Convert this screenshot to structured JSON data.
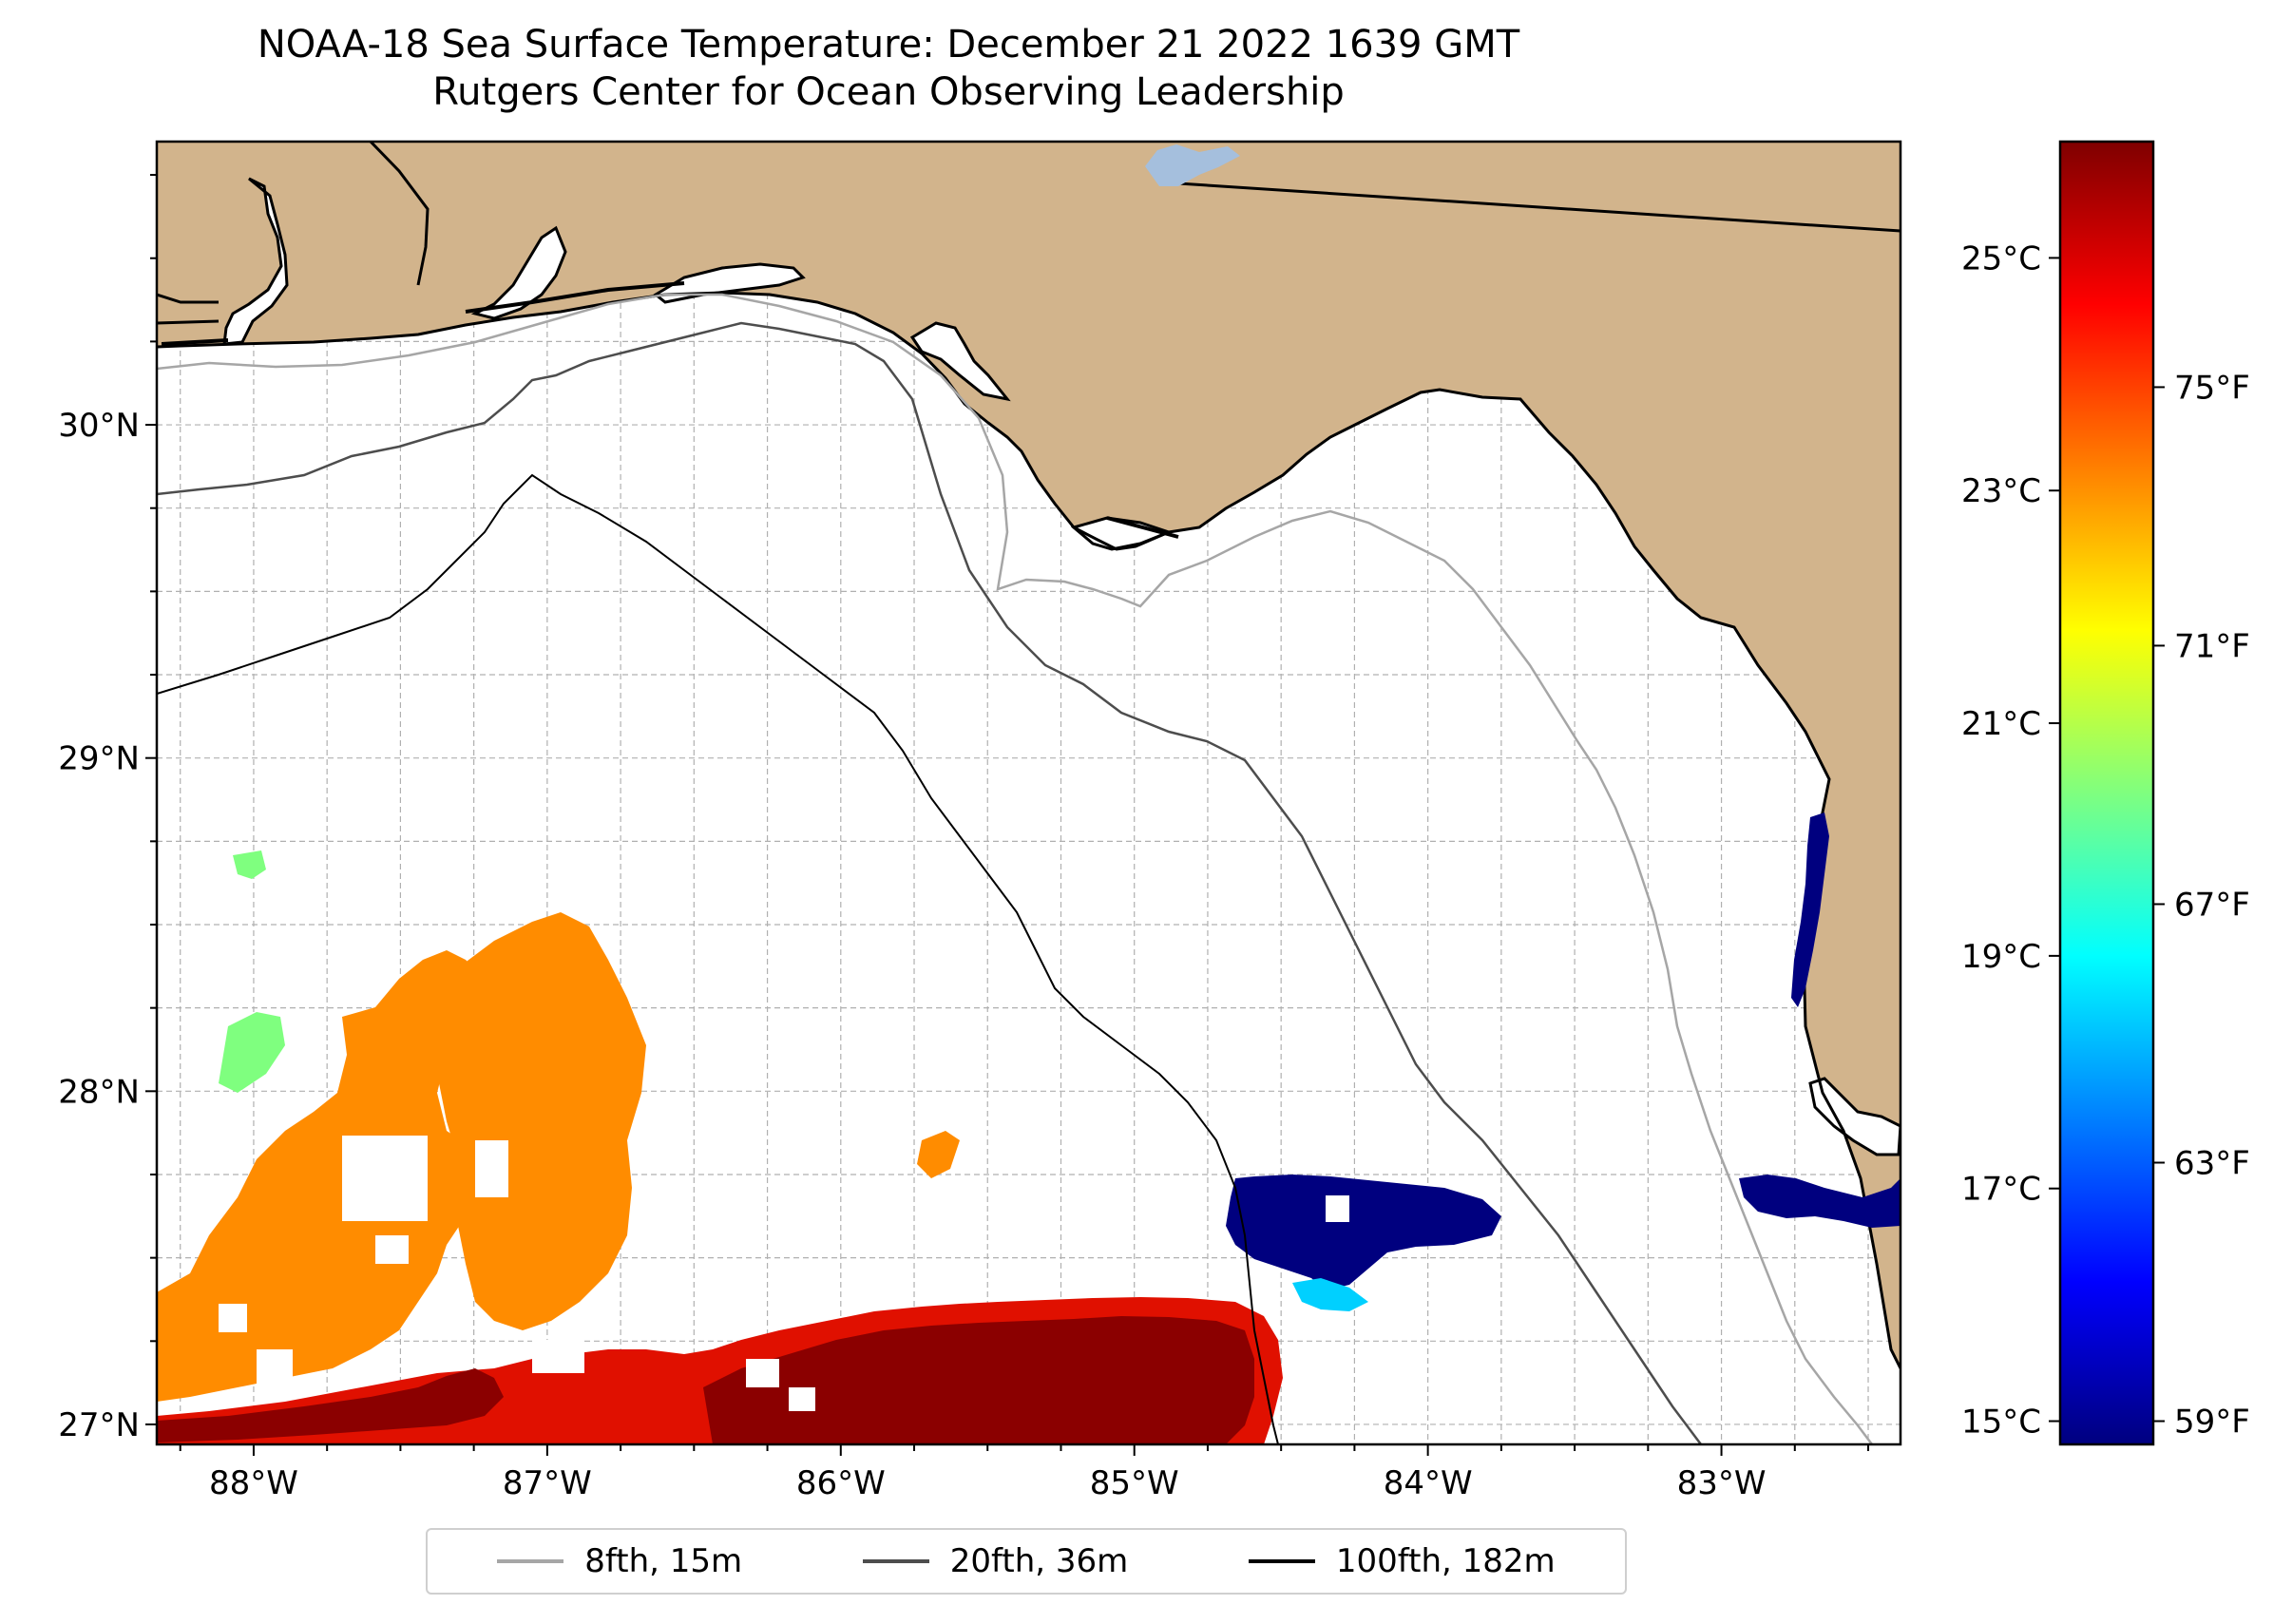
{
  "title": {
    "line1": "NOAA-18 Sea Surface Temperature: December 21 2022 1639 GMT",
    "line2": "Rutgers Center for Ocean Observing Leadership"
  },
  "map": {
    "extent": {
      "lon_min": -88.33,
      "lon_max": -82.39,
      "lat_min": 26.94,
      "lat_max": 30.85
    },
    "lon_ticks": [
      {
        "value": -88,
        "label": "88°W"
      },
      {
        "value": -87,
        "label": "87°W"
      },
      {
        "value": -86,
        "label": "86°W"
      },
      {
        "value": -85,
        "label": "85°W"
      },
      {
        "value": -84,
        "label": "84°W"
      },
      {
        "value": -83,
        "label": "83°W"
      }
    ],
    "lat_ticks": [
      {
        "value": 27,
        "label": "27°N"
      },
      {
        "value": 28,
        "label": "28°N"
      },
      {
        "value": 29,
        "label": "29°N"
      },
      {
        "value": 30,
        "label": "30°N"
      }
    ],
    "colors": {
      "land": "#d2b48c",
      "ocean": "#ffffff",
      "grid": "#b0b0b0",
      "lake": "#a5bfdd"
    }
  },
  "colorbar": {
    "celsius_ticks": [
      {
        "value": 15,
        "label": "15°C"
      },
      {
        "value": 17,
        "label": "17°C"
      },
      {
        "value": 19,
        "label": "19°C"
      },
      {
        "value": 21,
        "label": "21°C"
      },
      {
        "value": 23,
        "label": "23°C"
      },
      {
        "value": 25,
        "label": "25°C"
      }
    ],
    "fahrenheit_ticks": [
      {
        "value": 59,
        "label": "59°F"
      },
      {
        "value": 63,
        "label": "63°F"
      },
      {
        "value": 67,
        "label": "67°F"
      },
      {
        "value": 71,
        "label": "71°F"
      },
      {
        "value": 75,
        "label": "75°F"
      }
    ],
    "range_c": [
      14.8,
      26.0
    ],
    "colormap": [
      "#00007f",
      "#0000ff",
      "#007fff",
      "#00ffff",
      "#7fff7f",
      "#ffff00",
      "#ff7f00",
      "#ff0000",
      "#7f0000"
    ]
  },
  "legend": {
    "items": [
      {
        "label": "8fth, 15m",
        "color": "#a6a6a6"
      },
      {
        "label": "20fth, 36m",
        "color": "#4d4d4d"
      },
      {
        "label": "100fth, 182m",
        "color": "#000000"
      }
    ]
  }
}
